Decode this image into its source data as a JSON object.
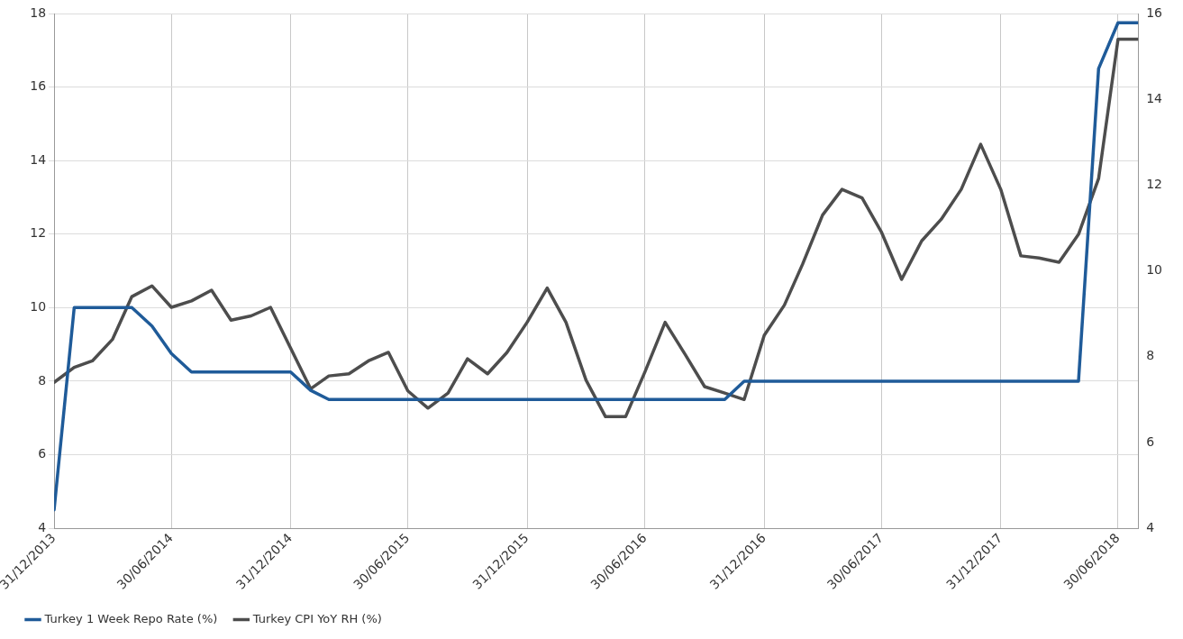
{
  "chart_data": {
    "type": "line",
    "x": [
      "2013-12-31",
      "2014-01-31",
      "2014-02-28",
      "2014-03-31",
      "2014-04-30",
      "2014-05-31",
      "2014-06-30",
      "2014-07-31",
      "2014-08-31",
      "2014-09-30",
      "2014-10-31",
      "2014-11-30",
      "2014-12-31",
      "2015-01-31",
      "2015-02-28",
      "2015-03-31",
      "2015-04-30",
      "2015-05-31",
      "2015-06-30",
      "2015-07-31",
      "2015-08-31",
      "2015-09-30",
      "2015-10-31",
      "2015-11-30",
      "2015-12-31",
      "2016-01-31",
      "2016-02-29",
      "2016-03-31",
      "2016-04-30",
      "2016-05-31",
      "2016-06-30",
      "2016-07-31",
      "2016-08-31",
      "2016-09-30",
      "2016-10-31",
      "2016-11-30",
      "2016-12-31",
      "2017-01-31",
      "2017-02-28",
      "2017-03-31",
      "2017-04-30",
      "2017-05-31",
      "2017-06-30",
      "2017-07-31",
      "2017-08-31",
      "2017-09-30",
      "2017-10-31",
      "2017-11-30",
      "2017-12-31",
      "2018-01-31",
      "2018-02-28",
      "2018-03-31",
      "2018-04-30",
      "2018-05-31",
      "2018-06-30",
      "2018-07-31"
    ],
    "series": [
      {
        "name": "Turkey 1 Week Repo Rate (%)",
        "color": "#1f5b99",
        "values": [
          4.5,
          10,
          10,
          10,
          10,
          9.5,
          8.75,
          8.25,
          8.25,
          8.25,
          8.25,
          8.25,
          8.25,
          7.75,
          7.5,
          7.5,
          7.5,
          7.5,
          7.5,
          7.5,
          7.5,
          7.5,
          7.5,
          7.5,
          7.5,
          7.5,
          7.5,
          7.5,
          7.5,
          7.5,
          7.5,
          7.5,
          7.5,
          7.5,
          7.5,
          8,
          8,
          8,
          8,
          8,
          8,
          8,
          8,
          8,
          8,
          8,
          8,
          8,
          8,
          8,
          8,
          8,
          8,
          16.5,
          17.75,
          17.75
        ]
      },
      {
        "name": "Turkey CPI YoY RH (%)",
        "color": "#4d4d4d",
        "axis": "y2",
        "values": [
          7.4,
          7.75,
          7.9,
          8.4,
          9.4,
          9.65,
          9.15,
          9.3,
          9.55,
          8.85,
          8.95,
          9.15,
          8.2,
          7.25,
          7.55,
          7.6,
          7.9,
          8.1,
          7.2,
          6.8,
          7.15,
          7.95,
          7.6,
          8.1,
          8.8,
          9.6,
          8.8,
          7.45,
          6.6,
          6.6,
          7.65,
          8.8,
          8.05,
          7.3,
          7.15,
          7.0,
          8.5,
          9.2,
          10.15,
          11.3,
          11.9,
          11.7,
          10.9,
          9.8,
          10.7,
          11.2,
          11.9,
          12.95,
          11.9,
          10.35,
          10.3,
          10.2,
          10.85,
          12.15,
          15.4,
          15.4
        ]
      }
    ],
    "xlim": [
      "2013-12-31",
      "2018-07-31"
    ],
    "xticks": [
      {
        "value": "2013-12-31",
        "label": "31/12/2013"
      },
      {
        "value": "2014-06-30",
        "label": "30/06/2014"
      },
      {
        "value": "2014-12-31",
        "label": "31/12/2014"
      },
      {
        "value": "2015-06-30",
        "label": "30/06/2015"
      },
      {
        "value": "2015-12-31",
        "label": "31/12/2015"
      },
      {
        "value": "2016-06-30",
        "label": "30/06/2016"
      },
      {
        "value": "2016-12-31",
        "label": "31/12/2016"
      },
      {
        "value": "2017-06-30",
        "label": "30/06/2017"
      },
      {
        "value": "2017-12-31",
        "label": "31/12/2017"
      },
      {
        "value": "2018-06-30",
        "label": "30/06/2018"
      }
    ],
    "ylim": [
      4,
      18
    ],
    "yticks": [
      4,
      6,
      8,
      10,
      12,
      14,
      16,
      18
    ],
    "y2lim": [
      4,
      16
    ],
    "y2ticks": [
      4,
      6,
      8,
      10,
      12,
      14,
      16
    ],
    "grid": true,
    "legend": "bottom left",
    "marker": "none",
    "line_style": "solid"
  }
}
